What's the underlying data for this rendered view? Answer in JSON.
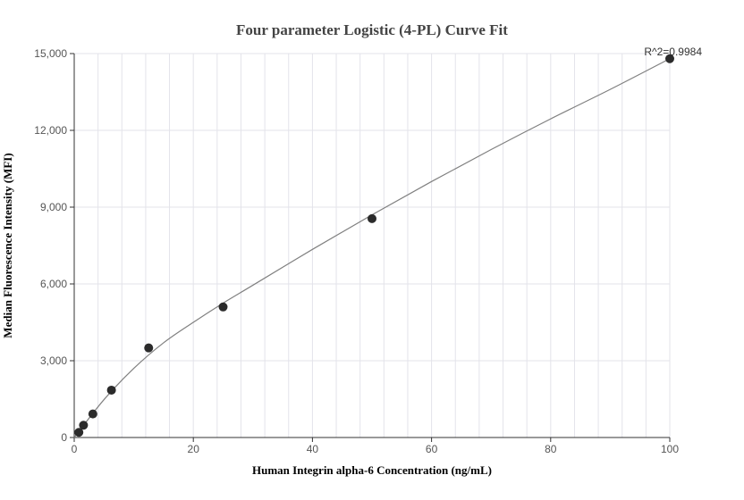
{
  "chart_data": {
    "type": "scatter",
    "title": "Four parameter Logistic (4-PL) Curve Fit",
    "xlabel": "Human Integrin alpha-6 Concentration (ng/mL)",
    "ylabel": "Median Fluorescence Intensity (MFI)",
    "xlim": [
      0,
      100
    ],
    "ylim": [
      0,
      15000
    ],
    "x_ticks": [
      0,
      20,
      40,
      60,
      80,
      100
    ],
    "y_ticks": [
      0,
      3000,
      6000,
      9000,
      12000,
      15000
    ],
    "x_tick_labels": [
      "0",
      "20",
      "40",
      "60",
      "80",
      "100"
    ],
    "y_tick_labels": [
      "0",
      "3,000",
      "6,000",
      "9,000",
      "12,000",
      "15,000"
    ],
    "grid": true,
    "annotation": "R^2=0.9984",
    "series": [
      {
        "points": [
          {
            "x": 0.78,
            "y": 200
          },
          {
            "x": 1.56,
            "y": 480
          },
          {
            "x": 3.13,
            "y": 920
          },
          {
            "x": 6.25,
            "y": 1850
          },
          {
            "x": 12.5,
            "y": 3500
          },
          {
            "x": 25,
            "y": 5100
          },
          {
            "x": 50,
            "y": 8550
          },
          {
            "x": 100,
            "y": 14800
          }
        ],
        "fit_curve": {
          "x": [
            0,
            5,
            10,
            15,
            20,
            25,
            30,
            40,
            50,
            60,
            70,
            80,
            90,
            100
          ],
          "y": [
            0,
            1480,
            2700,
            3700,
            4500,
            5250,
            5950,
            7350,
            8700,
            10000,
            11250,
            12450,
            13600,
            14800
          ]
        }
      }
    ]
  },
  "colors": {
    "point": "#2b2b2b",
    "curve": "#808080",
    "grid": "#e3e3ea",
    "axis": "#333333"
  }
}
